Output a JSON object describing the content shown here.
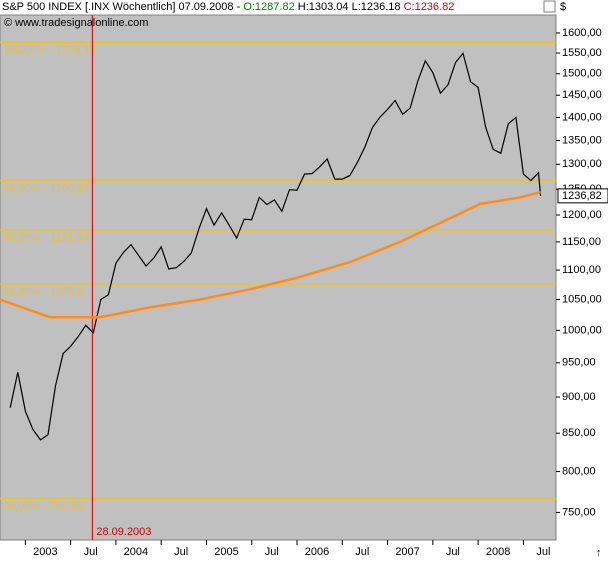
{
  "chart_data": {
    "type": "line",
    "title_parts": [
      {
        "text": "S&P 500 INDEX [.INX  Wöchentlich] 07.09.2008 - ",
        "color": "#000000"
      },
      {
        "text": "O:1287.82",
        "color": "#008000"
      },
      {
        "text": " H:1303.04",
        "color": "#000000"
      },
      {
        "text": " L:1236.18",
        "color": "#000000"
      },
      {
        "text": " C:1236.82",
        "color": "#cc0000"
      }
    ],
    "subtitle": "© www.tradesignalonline.com",
    "currency": "$",
    "log_scale": true,
    "xlim": [
      2002.72,
      2008.86
    ],
    "ylim": [
      718,
      1646
    ],
    "xticks": [
      {
        "value": 2003,
        "label": "2003"
      },
      {
        "value": 2003.5,
        "label": "Jul"
      },
      {
        "value": 2004,
        "label": "2004"
      },
      {
        "value": 2004.5,
        "label": "Jul"
      },
      {
        "value": 2005,
        "label": "2005"
      },
      {
        "value": 2005.5,
        "label": "Jul"
      },
      {
        "value": 2006,
        "label": "2006"
      },
      {
        "value": 2006.5,
        "label": "Jul"
      },
      {
        "value": 2007,
        "label": "2007"
      },
      {
        "value": 2007.5,
        "label": "Jul"
      },
      {
        "value": 2008,
        "label": "2008"
      },
      {
        "value": 2008.5,
        "label": "Jul"
      }
    ],
    "yticks": [
      {
        "value": 750,
        "label": "750,00"
      },
      {
        "value": 800,
        "label": "800,00"
      },
      {
        "value": 850,
        "label": "850,00"
      },
      {
        "value": 900,
        "label": "900,00"
      },
      {
        "value": 950,
        "label": "950,00"
      },
      {
        "value": 1000,
        "label": "1000,00"
      },
      {
        "value": 1050,
        "label": "1050,00"
      },
      {
        "value": 1100,
        "label": "1100,00"
      },
      {
        "value": 1150,
        "label": "1150,00"
      },
      {
        "value": 1200,
        "label": "1200,00"
      },
      {
        "value": 1250,
        "label": "1250,00"
      },
      {
        "value": 1300,
        "label": "1300,00"
      },
      {
        "value": 1350,
        "label": "1350,00"
      },
      {
        "value": 1400,
        "label": "1400,00"
      },
      {
        "value": 1450,
        "label": "1450,00"
      },
      {
        "value": 1500,
        "label": "1500,00"
      },
      {
        "value": 1550,
        "label": "1550,00"
      },
      {
        "value": 1600,
        "label": "1600,00"
      }
    ],
    "series": [
      {
        "name": "S&P 500",
        "color": "#000000",
        "x": [
          2002.833,
          2002.917,
          2003.0,
          2003.083,
          2003.167,
          2003.25,
          2003.333,
          2003.417,
          2003.5,
          2003.583,
          2003.667,
          2003.75,
          2003.833,
          2003.917,
          2004.0,
          2004.083,
          2004.167,
          2004.25,
          2004.333,
          2004.417,
          2004.5,
          2004.583,
          2004.667,
          2004.75,
          2004.833,
          2004.917,
          2005.0,
          2005.083,
          2005.167,
          2005.25,
          2005.333,
          2005.417,
          2005.5,
          2005.583,
          2005.667,
          2005.75,
          2005.833,
          2005.917,
          2006.0,
          2006.083,
          2006.167,
          2006.25,
          2006.333,
          2006.417,
          2006.5,
          2006.583,
          2006.667,
          2006.75,
          2006.833,
          2006.917,
          2007.0,
          2007.083,
          2007.167,
          2007.25,
          2007.333,
          2007.417,
          2007.5,
          2007.583,
          2007.667,
          2007.75,
          2007.833,
          2007.917,
          2008.0,
          2008.083,
          2008.167,
          2008.25,
          2008.333,
          2008.417,
          2008.5,
          2008.583,
          2008.667,
          2008.69
        ],
        "values": [
          885,
          936,
          880,
          855,
          841,
          848,
          916,
          964,
          975,
          990,
          1008,
          996,
          1050,
          1058,
          1112,
          1131,
          1145,
          1126,
          1107,
          1121,
          1141,
          1102,
          1104,
          1115,
          1130,
          1174,
          1212,
          1181,
          1204,
          1181,
          1157,
          1192,
          1191,
          1234,
          1220,
          1229,
          1207,
          1249,
          1248,
          1280,
          1281,
          1295,
          1311,
          1270,
          1270,
          1277,
          1304,
          1336,
          1378,
          1401,
          1418,
          1438,
          1407,
          1421,
          1482,
          1531,
          1503,
          1455,
          1474,
          1527,
          1549,
          1481,
          1468,
          1379,
          1331,
          1323,
          1386,
          1400,
          1280,
          1267,
          1283,
          1236.82
        ]
      },
      {
        "name": "Moving Average",
        "color": "#ff8c1a",
        "x": [
          2002.72,
          2003.27,
          2003.82,
          2004.38,
          2004.93,
          2005.48,
          2006.03,
          2006.59,
          2007.14,
          2007.69,
          2008.02,
          2008.47,
          2008.69
        ],
        "values": [
          1050,
          1021,
          1021,
          1037,
          1050,
          1067,
          1088,
          1114,
          1150,
          1194,
          1221,
          1234,
          1244
        ]
      }
    ],
    "levels": [
      {
        "value": 1576.15,
        "label": "100,00% - 1576,15"
      },
      {
        "value": 1266.87,
        "label": "61,80% - 1266,87"
      },
      {
        "value": 1171.34,
        "label": "50,00% - 1171,34"
      },
      {
        "value": 1075.8,
        "label": "38,20% - 1075,8"
      },
      {
        "value": 766.53,
        "label": "00,00% - 766,53"
      }
    ],
    "level_color": "#f0c020",
    "vline": {
      "value": 2003.74,
      "label": "28.09.2003",
      "color": "#cc0000"
    },
    "last_price": {
      "value": 1236.82,
      "label": "1236,82"
    }
  }
}
